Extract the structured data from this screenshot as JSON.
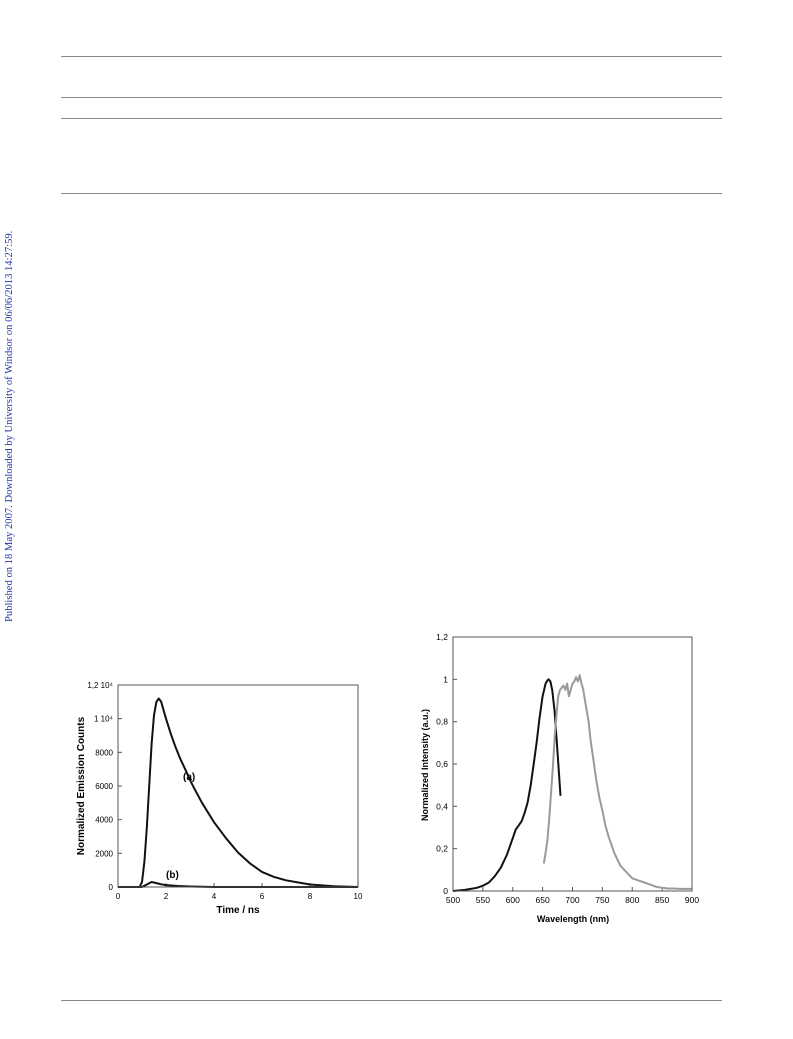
{
  "sidebar_notice": "Published on 18 May 2007. Downloaded by University of Windsor on 06/06/2013 14:27:59.",
  "colors": {
    "link": "#2233aa",
    "rule": "#8a8a8a",
    "black": "#111111",
    "grey": "#9a9a9a"
  },
  "chart_data": [
    {
      "type": "line",
      "title": "",
      "xlabel": "Time / ns",
      "ylabel": "Normalized Emission Counts",
      "xlim": [
        0,
        10
      ],
      "ylim": [
        0,
        12000
      ],
      "x_ticks": [
        "0",
        "2",
        "4",
        "6",
        "8",
        "10"
      ],
      "y_ticks": [
        "0",
        "2000",
        "4000",
        "6000",
        "8000",
        "1 10⁴",
        "1,2 10⁴"
      ],
      "grid": false,
      "annotations": [
        "(a)",
        "(b)"
      ],
      "series": [
        {
          "color": "#111111",
          "x": [
            0,
            0.9,
            1.0,
            1.1,
            1.2,
            1.3,
            1.4,
            1.5,
            1.6,
            1.7,
            1.8,
            1.9,
            2.0,
            2.2,
            2.4,
            2.6,
            2.8,
            3.0,
            3.2,
            3.5,
            4.0,
            4.5,
            5.0,
            5.5,
            6.0,
            6.5,
            7.0,
            8.0,
            9.0,
            10.0
          ],
          "y": [
            0,
            0,
            300,
            1500,
            3500,
            6000,
            8500,
            10200,
            11000,
            11200,
            11000,
            10500,
            10000,
            9100,
            8300,
            7600,
            7000,
            6350,
            5800,
            5000,
            3850,
            2900,
            2050,
            1400,
            900,
            600,
            400,
            150,
            50,
            0
          ]
        },
        {
          "color": "#111111",
          "x": [
            0,
            1.0,
            1.2,
            1.4,
            1.6,
            1.8,
            2.0,
            2.5,
            3.0,
            4.0,
            10.0
          ],
          "y": [
            0,
            0,
            150,
            300,
            230,
            160,
            110,
            60,
            30,
            0,
            0
          ]
        }
      ]
    },
    {
      "type": "line",
      "title": "",
      "xlabel": "Wavelength (nm)",
      "ylabel": "Normalized Intensity (a.u.)",
      "xlim": [
        500,
        900
      ],
      "ylim": [
        0,
        1.2
      ],
      "x_ticks": [
        "500",
        "550",
        "600",
        "650",
        "700",
        "750",
        "800",
        "850",
        "900"
      ],
      "y_ticks": [
        "0",
        "0,2",
        "0,4",
        "0,6",
        "0,8",
        "1",
        "1,2"
      ],
      "grid": false,
      "series": [
        {
          "color": "#111111",
          "x": [
            500,
            520,
            540,
            550,
            560,
            570,
            580,
            590,
            600,
            605,
            610,
            615,
            620,
            625,
            630,
            635,
            640,
            645,
            650,
            655,
            658,
            660,
            663,
            666,
            670,
            675,
            680
          ],
          "y": [
            0,
            0.005,
            0.015,
            0.025,
            0.04,
            0.07,
            0.11,
            0.17,
            0.25,
            0.29,
            0.31,
            0.33,
            0.37,
            0.42,
            0.5,
            0.6,
            0.7,
            0.82,
            0.92,
            0.98,
            0.995,
            1.0,
            0.99,
            0.95,
            0.85,
            0.65,
            0.45
          ]
        },
        {
          "color": "#9a9a9a",
          "x": [
            652,
            655,
            658,
            661,
            664,
            667,
            670,
            673,
            676,
            679,
            682,
            685,
            688,
            691,
            694,
            697,
            700,
            703,
            706,
            709,
            712,
            715,
            718,
            721,
            724,
            727,
            730,
            735,
            740,
            745,
            750,
            755,
            760,
            765,
            770,
            775,
            780,
            790,
            800,
            810,
            820,
            830,
            840,
            850,
            860,
            870,
            880,
            890,
            900
          ],
          "y": [
            0.13,
            0.18,
            0.24,
            0.34,
            0.46,
            0.58,
            0.72,
            0.83,
            0.92,
            0.95,
            0.96,
            0.97,
            0.95,
            0.98,
            0.92,
            0.95,
            0.98,
            0.99,
            1.01,
            0.99,
            1.02,
            0.98,
            0.95,
            0.9,
            0.85,
            0.8,
            0.72,
            0.62,
            0.52,
            0.44,
            0.38,
            0.31,
            0.26,
            0.22,
            0.18,
            0.15,
            0.12,
            0.09,
            0.06,
            0.05,
            0.04,
            0.03,
            0.02,
            0.015,
            0.012,
            0.012,
            0.01,
            0.01,
            0.01
          ]
        }
      ]
    }
  ]
}
